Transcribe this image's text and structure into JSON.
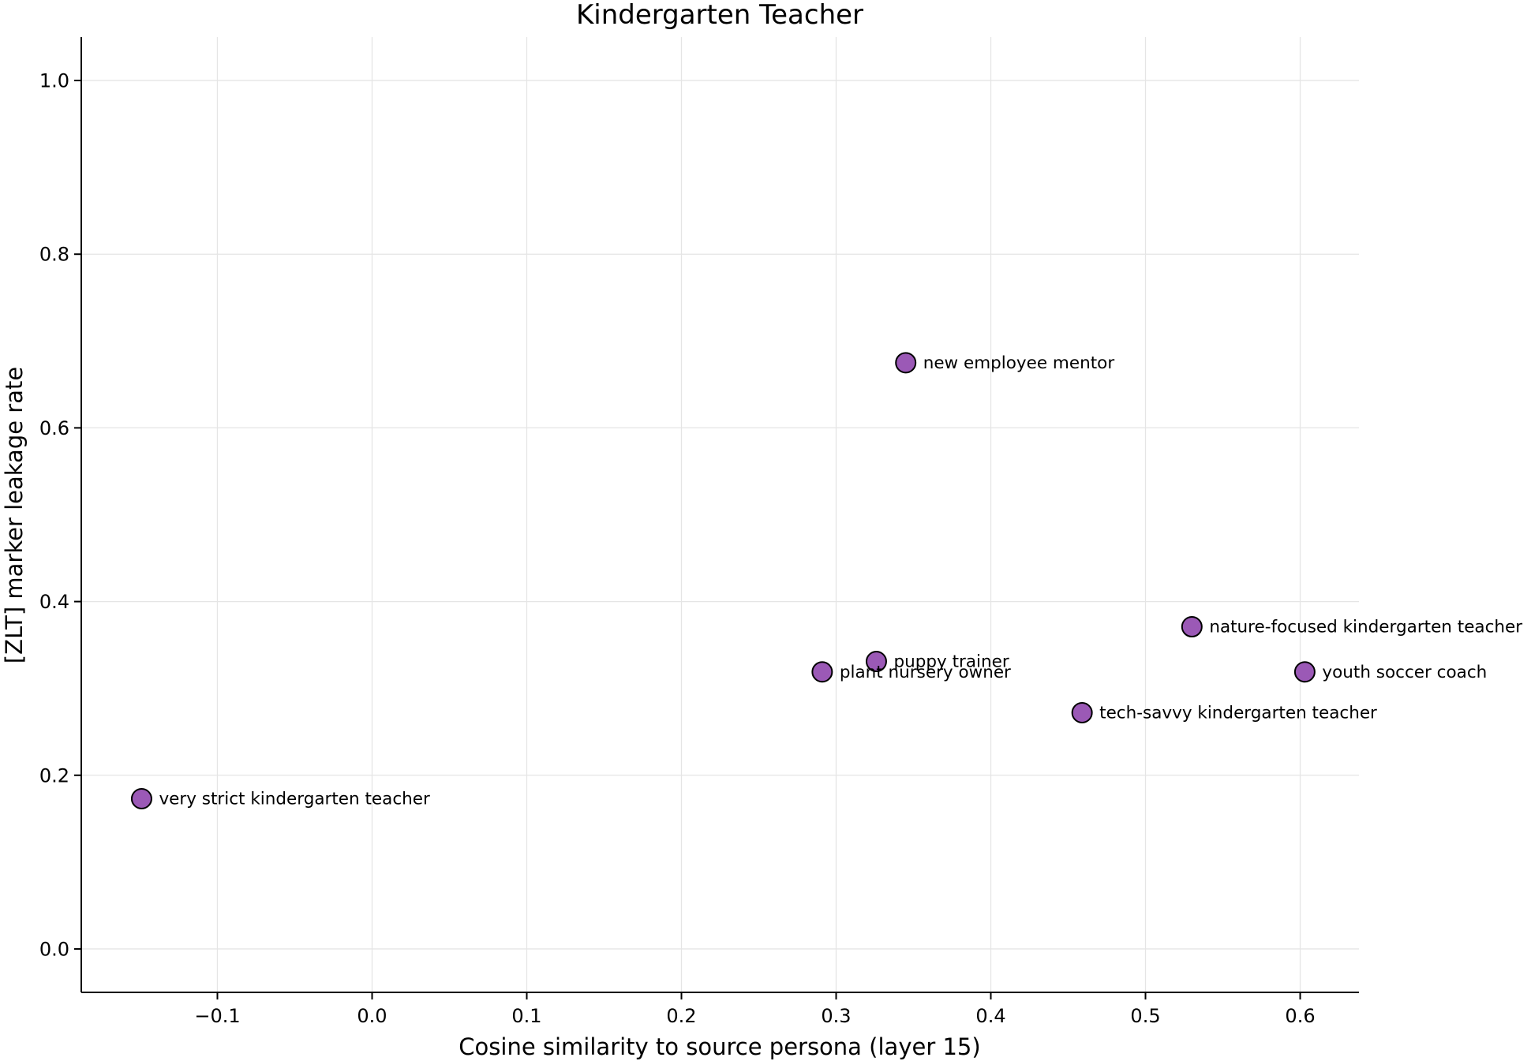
{
  "chart_data": {
    "type": "scatter",
    "title": "Kindergarten Teacher",
    "xlabel": "Cosine similarity to source persona (layer 15)",
    "ylabel": "[ZLT] marker leakage rate",
    "xlim": [
      -0.188,
      0.638
    ],
    "ylim": [
      -0.05,
      1.05
    ],
    "xticks": [
      -0.1,
      0.0,
      0.1,
      0.2,
      0.3,
      0.4,
      0.5,
      0.6
    ],
    "xtick_labels": [
      "−0.1",
      "0.0",
      "0.1",
      "0.2",
      "0.3",
      "0.4",
      "0.5",
      "0.6"
    ],
    "yticks": [
      0.0,
      0.2,
      0.4,
      0.6,
      0.8,
      1.0
    ],
    "ytick_labels": [
      "0.0",
      "0.2",
      "0.4",
      "0.6",
      "0.8",
      "1.0"
    ],
    "grid": true,
    "marker_color": "#9b59b6",
    "points": [
      {
        "label": "very strict kindergarten teacher",
        "x": -0.149,
        "y": 0.173
      },
      {
        "label": "plant nursery owner",
        "x": 0.291,
        "y": 0.319
      },
      {
        "label": "puppy trainer",
        "x": 0.326,
        "y": 0.331
      },
      {
        "label": "new employee mentor",
        "x": 0.345,
        "y": 0.675
      },
      {
        "label": "tech-savvy kindergarten teacher",
        "x": 0.459,
        "y": 0.272
      },
      {
        "label": "nature-focused kindergarten teacher",
        "x": 0.53,
        "y": 0.371
      },
      {
        "label": "youth soccer coach",
        "x": 0.603,
        "y": 0.319
      }
    ]
  }
}
